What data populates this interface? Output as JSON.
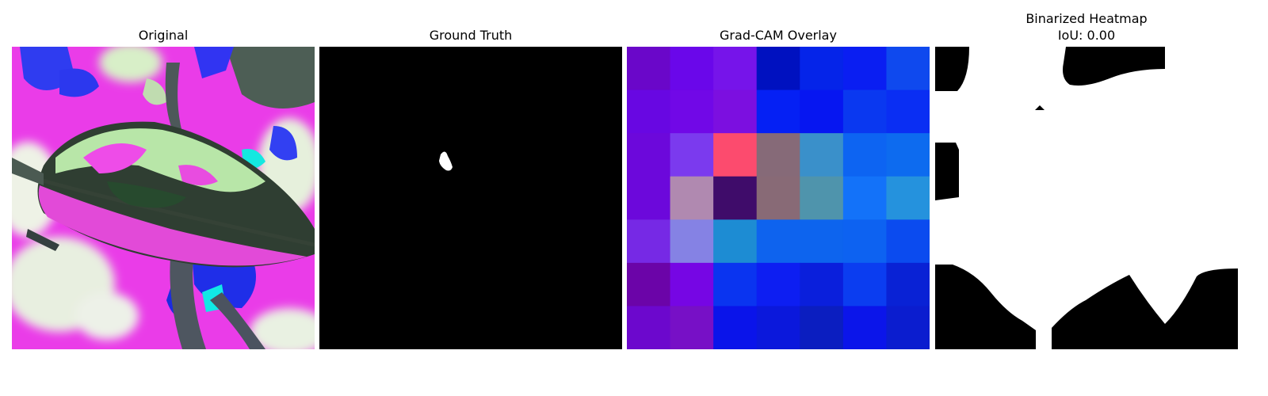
{
  "panels": [
    {
      "title": "Original"
    },
    {
      "title": "Ground Truth"
    },
    {
      "title": "Grad-CAM Overlay"
    },
    {
      "title_line1": "Binarized Heatmap",
      "title_line2": "IoU: 0.00"
    }
  ],
  "gradcam_grid": [
    [
      "#6a07c9",
      "#6a07ea",
      "#7614ea",
      "#0011c0",
      "#0524e9",
      "#0a1ef2",
      "#0f49ee"
    ],
    [
      "#6807e2",
      "#7108e7",
      "#7c0fe0",
      "#0520f4",
      "#0616f1",
      "#0a38f0",
      "#0a2ef3"
    ],
    [
      "#6c08db",
      "#7b3aee",
      "#fc4b6e",
      "#866a78",
      "#3a90ca",
      "#0d64f2",
      "#0d6bef"
    ],
    [
      "#6c08db",
      "#b089b0",
      "#3f0c6a",
      "#886a76",
      "#4f94ac",
      "#1372f9",
      "#2592dd"
    ],
    [
      "#7629e5",
      "#8582e4",
      "#1d8cd3",
      "#0e63ee",
      "#0d64ee",
      "#0d62f1",
      "#0b4bef"
    ],
    [
      "#6b04a8",
      "#7606e4",
      "#0a34f0",
      "#0d1ef2",
      "#0a1fdc",
      "#0b3df0",
      "#0922d5"
    ],
    [
      "#6c08cd",
      "#7710c6",
      "#0a14ea",
      "#0b18dc",
      "#0b1ec0",
      "#0b15ea",
      "#0b1dcf"
    ]
  ]
}
